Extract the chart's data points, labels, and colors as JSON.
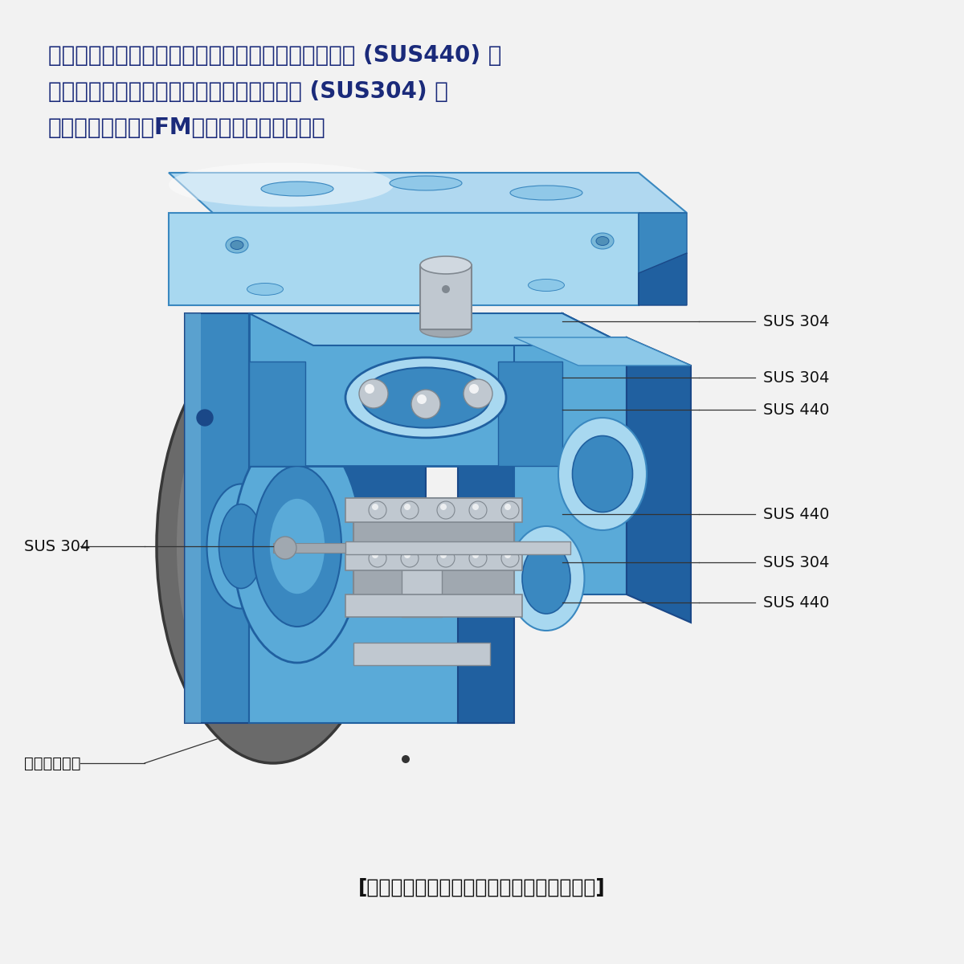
{
  "background_color": "#f2f2f2",
  "title_text": "ステンレスキャスター静音シリーズ構造図",
  "header_line1": "プラスチック部分を除いて、金属部分はベアリング (SUS440) 、",
  "header_line2": "ボルトにいたるまですべて全てステンレス (SUS304) 。",
  "header_line3": "なお、食品機械用FMグリースを標準仕様。",
  "label_sus304_top": "SUS 304",
  "label_sus304_mid": "SUS 304",
  "label_sus440_mid": "SUS 440",
  "label_sus304_left": "SUS 304",
  "label_sus440_bot1": "SUS 440",
  "label_sus304_bot2": "SUS 304",
  "label_sus440_bot3": "SUS 440",
  "label_gray_tire": "グレータイヤ",
  "text_color": "#1a2a7a",
  "label_color": "#111111",
  "fig_bg": "#f2f2f2",
  "blue1": "#5aaad8",
  "blue2": "#3a88c0",
  "blue3": "#2060a0",
  "blue4": "#1a4888",
  "blue_light": "#8cc8e8",
  "blue_pale": "#a8d8f0",
  "blue_dark": "#1a3870",
  "gray1": "#909090",
  "gray2": "#707070",
  "gray3": "#555555",
  "silver1": "#c0c8d0",
  "silver2": "#a0a8b0",
  "silver3": "#808890"
}
